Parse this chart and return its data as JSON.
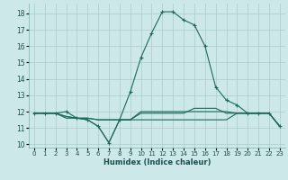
{
  "xlabel": "Humidex (Indice chaleur)",
  "bg_color": "#cce8e8",
  "grid_color": "#aacccc",
  "line_color": "#1a6b5a",
  "xlim": [
    -0.5,
    23.5
  ],
  "ylim": [
    9.8,
    18.6
  ],
  "xticks": [
    0,
    1,
    2,
    3,
    4,
    5,
    6,
    7,
    8,
    9,
    10,
    11,
    12,
    13,
    14,
    15,
    16,
    17,
    18,
    19,
    20,
    21,
    22,
    23
  ],
  "yticks": [
    10,
    11,
    12,
    13,
    14,
    15,
    16,
    17,
    18
  ],
  "line1_x": [
    0,
    1,
    2,
    3,
    4,
    5,
    6,
    7,
    8,
    9,
    10,
    11,
    12,
    13,
    14,
    15,
    16,
    17,
    18,
    19,
    20,
    21,
    22,
    23
  ],
  "line1_y": [
    11.9,
    11.9,
    11.9,
    12.0,
    11.6,
    11.5,
    11.1,
    10.1,
    11.5,
    13.2,
    15.3,
    16.8,
    18.1,
    18.1,
    17.6,
    17.3,
    16.0,
    13.5,
    12.7,
    12.4,
    11.9,
    11.9,
    11.9,
    11.1
  ],
  "line2_x": [
    0,
    1,
    2,
    3,
    4,
    5,
    6,
    7,
    8,
    9,
    10,
    11,
    12,
    13,
    14,
    15,
    16,
    17,
    18,
    19,
    20,
    21,
    22,
    23
  ],
  "line2_y": [
    11.9,
    11.9,
    11.9,
    11.6,
    11.6,
    11.5,
    11.1,
    10.1,
    11.5,
    11.5,
    11.5,
    11.5,
    11.5,
    11.5,
    11.5,
    11.5,
    11.5,
    11.5,
    11.5,
    11.9,
    11.9,
    11.9,
    11.9,
    11.1
  ],
  "line3_x": [
    0,
    1,
    2,
    3,
    4,
    5,
    6,
    7,
    8,
    9,
    10,
    11,
    12,
    13,
    14,
    15,
    16,
    17,
    18,
    19,
    20,
    21,
    22,
    23
  ],
  "line3_y": [
    11.9,
    11.9,
    11.9,
    11.7,
    11.6,
    11.6,
    11.5,
    11.5,
    11.5,
    11.5,
    12.0,
    12.0,
    12.0,
    12.0,
    12.0,
    12.0,
    12.0,
    12.0,
    12.0,
    11.9,
    11.9,
    11.9,
    11.9,
    11.1
  ],
  "line4_x": [
    0,
    1,
    2,
    3,
    4,
    5,
    6,
    7,
    8,
    9,
    10,
    11,
    12,
    13,
    14,
    15,
    16,
    17,
    18,
    19,
    20,
    21,
    22,
    23
  ],
  "line4_y": [
    11.9,
    11.9,
    11.9,
    11.7,
    11.6,
    11.6,
    11.5,
    11.5,
    11.5,
    11.5,
    11.9,
    11.9,
    11.9,
    11.9,
    11.9,
    12.2,
    12.2,
    12.2,
    11.9,
    11.9,
    11.9,
    11.9,
    11.9,
    11.1
  ]
}
